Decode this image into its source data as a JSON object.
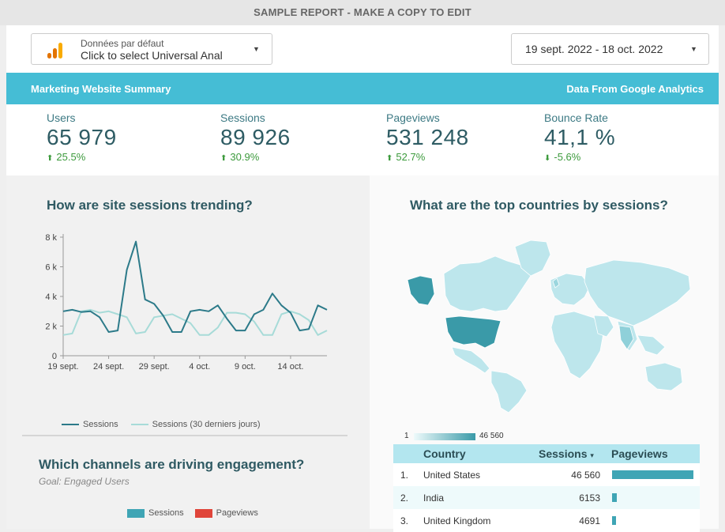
{
  "header": {
    "banner_text": "SAMPLE REPORT - MAKE A COPY TO EDIT"
  },
  "data_source": {
    "line1": "Données par défaut",
    "line2": "Click to select Universal Anal",
    "icon": "analytics-bars-icon"
  },
  "date_range": {
    "value": "19 sept. 2022 - 18 oct. 2022"
  },
  "title_bar": {
    "left": "Marketing Website Summary",
    "right": "Data From Google Analytics",
    "color": "#45bdd5"
  },
  "kpis": [
    {
      "label": "Users",
      "value": "65 979",
      "delta": "25.5%",
      "direction": "up"
    },
    {
      "label": "Sessions",
      "value": "89 926",
      "delta": "30.9%",
      "direction": "up"
    },
    {
      "label": "Pageviews",
      "value": "531 248",
      "delta": "52.7%",
      "direction": "up"
    },
    {
      "label": "Bounce Rate",
      "value": "41,1 %",
      "delta": "-5.6%",
      "direction": "down"
    }
  ],
  "sessions_trend": {
    "title": "How are site sessions trending?",
    "legend": [
      "Sessions",
      "Sessions (30 derniers jours)"
    ]
  },
  "countries_map": {
    "title": "What are the top countries by sessions?",
    "scale_min": "1",
    "scale_max": "46 560"
  },
  "channels": {
    "title": "Which channels are driving engagement?",
    "goal": "Goal: Engaged Users",
    "legend": [
      "Sessions",
      "Pageviews"
    ]
  },
  "country_table": {
    "headers": {
      "country": "Country",
      "sessions": "Sessions",
      "sort_icon": "▾",
      "pageviews": "Pageviews"
    },
    "rows": [
      {
        "rank": "1.",
        "country": "United States",
        "sessions": "46 560",
        "pageviews_share": 0.95
      },
      {
        "rank": "2.",
        "country": "India",
        "sessions": "6153",
        "pageviews_share": 0.06
      },
      {
        "rank": "3.",
        "country": "United Kingdom",
        "sessions": "4691",
        "pageviews_share": 0.05
      }
    ]
  },
  "chart_data": {
    "type": "line",
    "x": [
      "19 sept.",
      "20 sept.",
      "21 sept.",
      "22 sept.",
      "23 sept.",
      "24 sept.",
      "25 sept.",
      "26 sept.",
      "27 sept.",
      "28 sept.",
      "29 sept.",
      "30 sept.",
      "1 oct.",
      "2 oct.",
      "3 oct.",
      "4 oct.",
      "5 oct.",
      "6 oct.",
      "7 oct.",
      "8 oct.",
      "9 oct.",
      "10 oct.",
      "11 oct.",
      "12 oct.",
      "13 oct.",
      "14 oct.",
      "15 oct.",
      "16 oct.",
      "17 oct.",
      "18 oct."
    ],
    "xticks": [
      "19 sept.",
      "24 sept.",
      "29 sept.",
      "4 oct.",
      "9 oct.",
      "14 oct."
    ],
    "yticks": [
      "0",
      "2 k",
      "4 k",
      "6 k",
      "8 k"
    ],
    "ylim": [
      0,
      8000
    ],
    "series": [
      {
        "name": "Sessions",
        "color": "#2c7a89",
        "values": [
          3000,
          3100,
          2950,
          3000,
          2600,
          1600,
          1700,
          5800,
          7700,
          3800,
          3500,
          2700,
          1600,
          1600,
          3000,
          3100,
          3000,
          3400,
          2500,
          1700,
          1700,
          2800,
          3100,
          4200,
          3400,
          2900,
          1700,
          1800,
          3400,
          3100
        ]
      },
      {
        "name": "Sessions (30 derniers jours)",
        "color": "#a7dbd8",
        "values": [
          1400,
          1500,
          3000,
          3100,
          2900,
          3000,
          2800,
          2600,
          1500,
          1600,
          2600,
          2700,
          2800,
          2500,
          2200,
          1400,
          1400,
          1900,
          2900,
          2900,
          2800,
          2300,
          1400,
          1400,
          2800,
          3000,
          2800,
          2400,
          1400,
          1700
        ]
      }
    ]
  }
}
